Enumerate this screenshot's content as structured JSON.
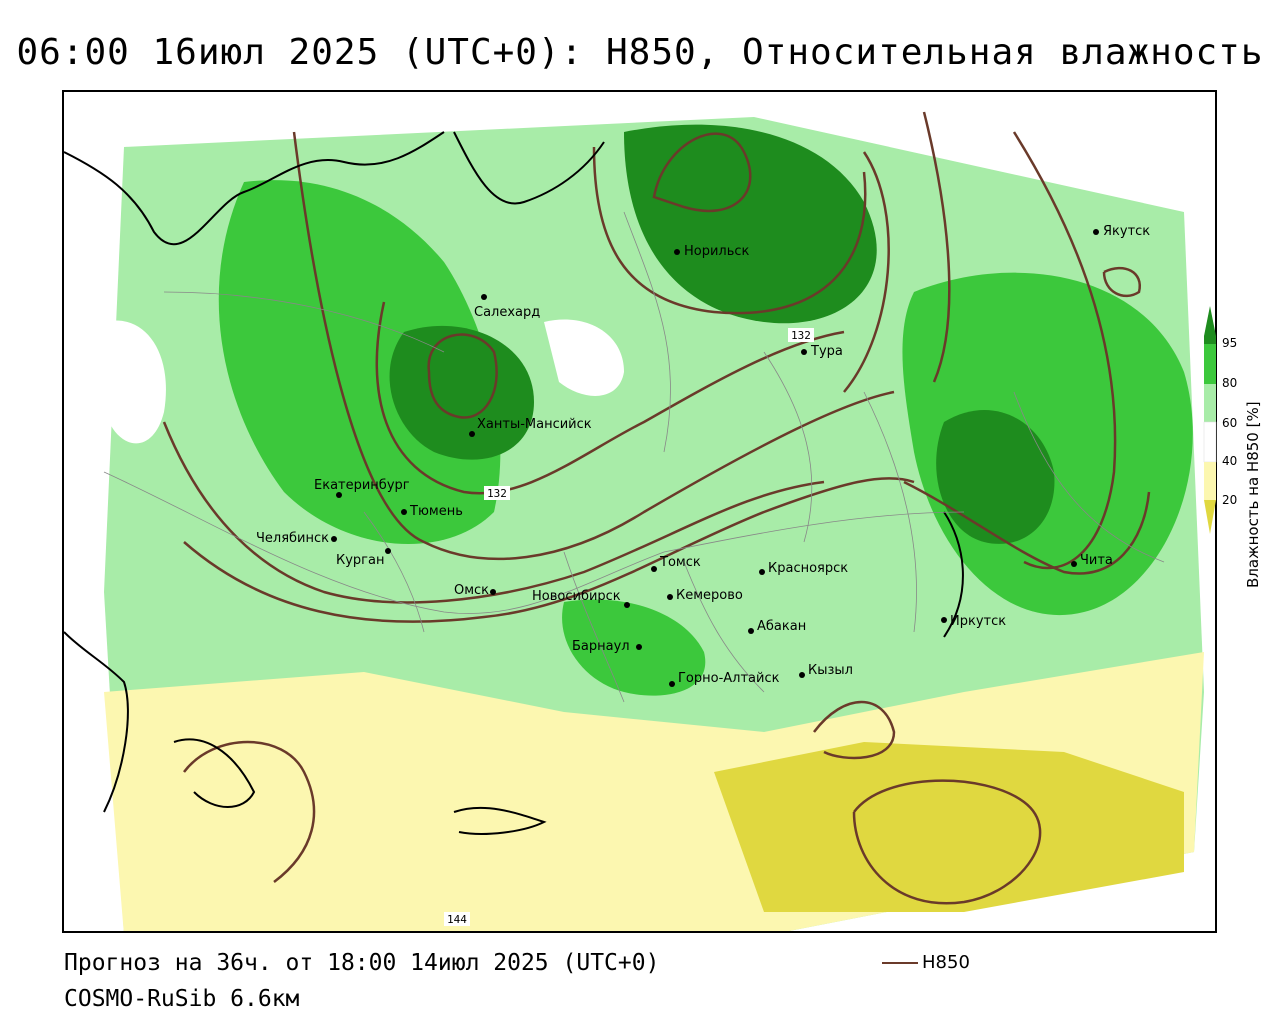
{
  "title": "06:00 16июл 2025 (UTC+0): H850, Относительная влажность",
  "footer": {
    "forecast": "Прогноз на 36ч. от 18:00 14июл 2025 (UTC+0)",
    "model": "COSMO-RuSib 6.6км"
  },
  "contour_legend": {
    "label": "H850",
    "color": "#6a3a2a"
  },
  "colorbar": {
    "title": "Влажность на H850 [%]",
    "ticks": [
      "95",
      "80",
      "60",
      "40",
      "20"
    ],
    "colors": [
      "#1e8c1e",
      "#3cc83c",
      "#a8eca8",
      "#ffffff",
      "#fcf7b0",
      "#e0d840"
    ]
  },
  "contour_labels": [
    "132",
    "132",
    "144"
  ],
  "cities": [
    {
      "name": "Норильск"
    },
    {
      "name": "Якутск"
    },
    {
      "name": "Салехард"
    },
    {
      "name": "Тура"
    },
    {
      "name": "Ханты-Мансийск"
    },
    {
      "name": "Екатеринбург"
    },
    {
      "name": "Тюмень"
    },
    {
      "name": "Челябинск"
    },
    {
      "name": "Курган"
    },
    {
      "name": "Омск"
    },
    {
      "name": "Новосибирск"
    },
    {
      "name": "Томск"
    },
    {
      "name": "Кемерово"
    },
    {
      "name": "Красноярск"
    },
    {
      "name": "Барнаул"
    },
    {
      "name": "Абакан"
    },
    {
      "name": "Горно-Алтайск"
    },
    {
      "name": "Кызыл"
    },
    {
      "name": "Иркутск"
    },
    {
      "name": "Чита"
    }
  ]
}
